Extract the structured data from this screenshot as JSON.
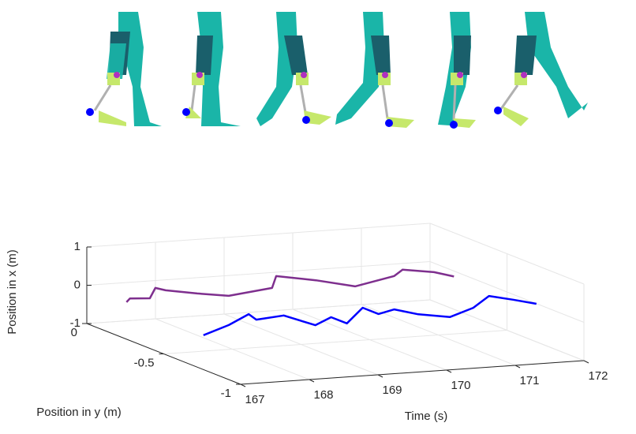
{
  "chart_data": {
    "type": "line3d",
    "xlabel": "Time (s)",
    "ylabel": "Position in y (m)",
    "zlabel": "Position in x (m)",
    "xlim": [
      167,
      172
    ],
    "xticks": [
      167,
      168,
      169,
      170,
      171,
      172
    ],
    "ylim": [
      -1,
      0
    ],
    "yticks": [
      -1,
      -0.5,
      0
    ],
    "zlim": [
      -1,
      1
    ],
    "zticks": [
      -1,
      0,
      1
    ],
    "grid": true,
    "series": [
      {
        "color": "#7e2f8e",
        "y": -0.2,
        "x": [
          167.13,
          167.18,
          167.47,
          167.55,
          167.7,
          168.16,
          168.62,
          169.25,
          169.31,
          169.89,
          170.46,
          171.03,
          171.15,
          171.61,
          171.9
        ],
        "values": [
          -0.14,
          -0.05,
          -0.08,
          0.18,
          0.1,
          -0.04,
          -0.16,
          -0.03,
          0.27,
          0.09,
          -0.14,
          0.06,
          0.21,
          0.09,
          -0.06
        ]
      },
      {
        "color": "#0000ff",
        "y": -0.7,
        "x": [
          167.13,
          167.5,
          167.79,
          167.9,
          168.3,
          168.76,
          168.99,
          169.22,
          169.45,
          169.68,
          169.91,
          170.26,
          170.72,
          171.06,
          171.29,
          171.64,
          171.98
        ],
        "values": [
          -0.21,
          0.01,
          0.26,
          0.1,
          0.16,
          -0.15,
          0.03,
          -0.16,
          0.22,
          0.03,
          0.12,
          -0.05,
          -0.18,
          0.02,
          0.3,
          0.16,
          0.01
        ]
      }
    ]
  }
}
